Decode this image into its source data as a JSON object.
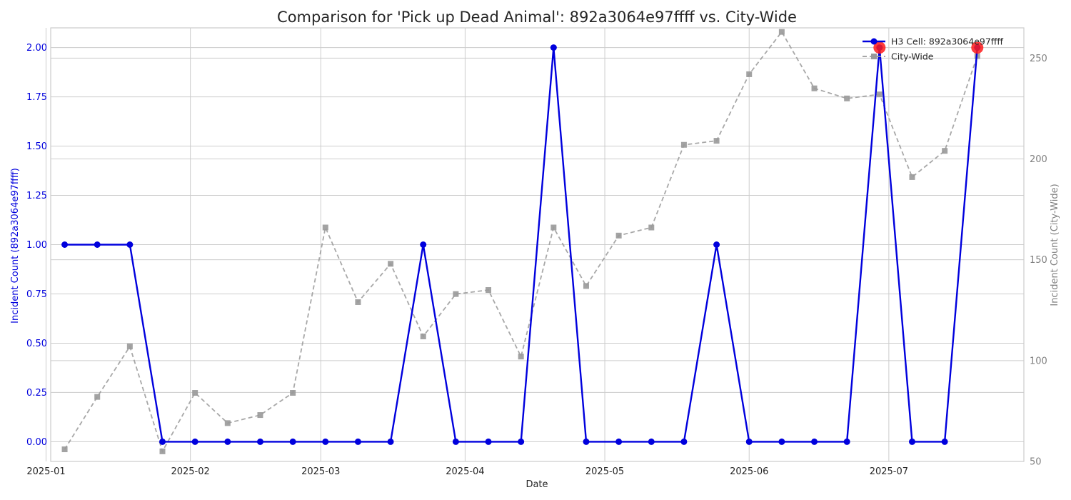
{
  "chart_data": {
    "type": "line",
    "title": "Comparison for 'Pick up Dead Animal': 892a3064e97ffff vs. City-Wide",
    "xlabel": "Date",
    "ylabel_left": "Incident Count (892a3064e97ffff)",
    "ylabel_right": "Incident Count (City-Wide)",
    "x_ticks": [
      "2025-01",
      "2025-02",
      "2025-03",
      "2025-04",
      "2025-05",
      "2025-06",
      "2025-07"
    ],
    "y_left_ticks": [
      "0.00",
      "0.25",
      "0.50",
      "0.75",
      "1.00",
      "1.25",
      "1.50",
      "1.75",
      "2.00"
    ],
    "y_right_ticks": [
      "50",
      "100",
      "150",
      "200",
      "250"
    ],
    "ylim_left": [
      -0.1,
      2.1
    ],
    "ylim_right": [
      50,
      265
    ],
    "grid": true,
    "legend_position": "top-right",
    "x": [
      "2025-01-05",
      "2025-01-12",
      "2025-01-19",
      "2025-01-26",
      "2025-02-02",
      "2025-02-09",
      "2025-02-16",
      "2025-02-23",
      "2025-03-02",
      "2025-03-09",
      "2025-03-16",
      "2025-03-23",
      "2025-03-30",
      "2025-04-06",
      "2025-04-13",
      "2025-04-20",
      "2025-04-27",
      "2025-05-04",
      "2025-05-11",
      "2025-05-18",
      "2025-05-25",
      "2025-06-01",
      "2025-06-08",
      "2025-06-15",
      "2025-06-22",
      "2025-06-29",
      "2025-07-06",
      "2025-07-13",
      "2025-07-20"
    ],
    "series": [
      {
        "name": "H3 Cell: 892a3064e97ffff",
        "axis": "left",
        "color": "#0000dd",
        "marker": "circle",
        "values": [
          1,
          1,
          1,
          0,
          0,
          0,
          0,
          0,
          0,
          0,
          0,
          1,
          0,
          0,
          0,
          2,
          0,
          0,
          0,
          0,
          1,
          0,
          0,
          0,
          0,
          2,
          0,
          0,
          2
        ]
      },
      {
        "name": "City-Wide",
        "axis": "right",
        "color": "#999999",
        "marker": "square",
        "values": [
          56,
          82,
          107,
          55,
          84,
          69,
          73,
          84,
          166,
          129,
          148,
          112,
          133,
          135,
          102,
          166,
          137,
          162,
          166,
          207,
          209,
          242,
          263,
          235,
          230,
          232,
          191,
          204,
          251
        ]
      }
    ],
    "highlights": [
      {
        "x": "2025-06-29",
        "value": 2,
        "color": "#ff1a1a"
      },
      {
        "x": "2025-07-20",
        "value": 2,
        "color": "#ff1a1a"
      }
    ]
  }
}
